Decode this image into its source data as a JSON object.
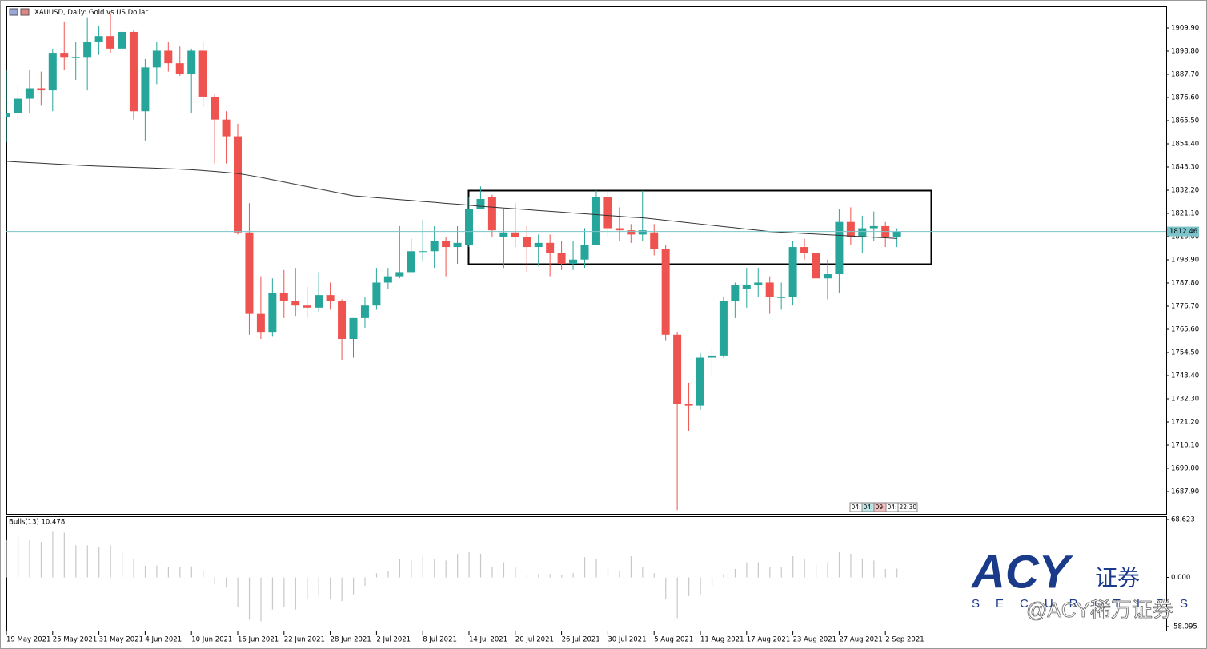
{
  "chart_data": [
    {
      "type": "candlestick",
      "title": "XAUUSD, Daily:  Gold vs US Dollar",
      "categories": [
        "19 May 2021",
        null,
        null,
        null,
        "25 May 2021",
        null,
        null,
        null,
        "31 May 2021",
        null,
        null,
        null,
        "4 Jun 2021",
        null,
        null,
        null,
        "10 Jun 2021",
        null,
        null,
        null,
        "16 Jun 2021",
        null,
        null,
        null,
        "22 Jun 2021",
        null,
        null,
        null,
        "28 Jun 2021",
        null,
        null,
        null,
        "2 Jul 2021",
        null,
        null,
        null,
        "8 Jul 2021",
        null,
        null,
        null,
        "14 Jul 2021",
        null,
        null,
        null,
        "20 Jul 2021",
        null,
        null,
        null,
        "26 Jul 2021",
        null,
        null,
        null,
        "30 Jul 2021",
        null,
        null,
        null,
        "5 Aug 2021",
        null,
        null,
        null,
        "11 Aug 2021",
        null,
        null,
        null,
        "17 Aug 2021",
        null,
        null,
        null,
        "23 Aug 2021",
        null,
        null,
        null,
        "27 Aug 2021",
        null,
        null,
        null,
        "2 Sep 2021",
        null
      ],
      "open": [
        1867,
        1869,
        1876,
        1881,
        1880,
        1898,
        1896,
        1896,
        1903,
        1906,
        1900,
        1908,
        1870,
        1891,
        1899,
        1893,
        1888,
        1899,
        1877,
        1866,
        1858,
        1812,
        1773,
        1764,
        1783,
        1779,
        1777,
        1776,
        1782,
        1779,
        1761,
        1771,
        1777,
        1788,
        1791,
        1793,
        1803,
        1803,
        1808,
        1805,
        1806,
        1823,
        1829,
        1810,
        1812,
        1810,
        1805,
        1807,
        1802,
        1797,
        1799,
        1806,
        1829,
        1814,
        1813,
        1811,
        1812,
        1804,
        1763,
        1730,
        1729,
        1752,
        1753,
        1779,
        1785,
        1787,
        1788,
        1781,
        1781,
        1805,
        1802,
        1790,
        1792,
        1817,
        1810,
        1814,
        1815,
        1810
      ],
      "high": [
        1890,
        1883,
        1890,
        1889,
        1900,
        1913,
        1903,
        1915,
        1911,
        1917,
        1910,
        1909,
        1895,
        1903,
        1903,
        1901,
        1900,
        1903,
        1878,
        1870,
        1864,
        1826,
        1791,
        1790,
        1794,
        1795,
        1786,
        1793,
        1788,
        1780,
        1771,
        1781,
        1795,
        1795,
        1815,
        1809,
        1818,
        1815,
        1810,
        1815,
        1829,
        1834,
        1830,
        1823,
        1826,
        1815,
        1811,
        1811,
        1808,
        1808,
        1814,
        1832,
        1832,
        1824,
        1816,
        1832,
        1816,
        1806,
        1764,
        1740,
        1754,
        1757,
        1781,
        1788,
        1795,
        1795,
        1791,
        1788,
        1808,
        1809,
        1803,
        1799,
        1823,
        1824,
        1820,
        1822,
        1817,
        1814
      ],
      "low": [
        1855,
        1865,
        1869,
        1873,
        1870,
        1890,
        1885,
        1880,
        1897,
        1898,
        1896,
        1866,
        1856,
        1883,
        1889,
        1887,
        1869,
        1872,
        1845,
        1845,
        1811,
        1763,
        1761,
        1762,
        1771,
        1772,
        1771,
        1774,
        1775,
        1751,
        1752,
        1766,
        1775,
        1785,
        1790,
        1793,
        1798,
        1795,
        1791,
        1797,
        1805,
        1823,
        1810,
        1795,
        1805,
        1793,
        1796,
        1791,
        1794,
        1794,
        1795,
        1806,
        1810,
        1808,
        1807,
        1808,
        1801,
        1760,
        1679,
        1717,
        1727,
        1743,
        1752,
        1771,
        1776,
        1781,
        1773,
        1775,
        1777,
        1799,
        1781,
        1780,
        1783,
        1806,
        1802,
        1808,
        1805,
        1805
      ],
      "close": [
        1869,
        1876,
        1881,
        1880,
        1898,
        1896,
        1896,
        1903,
        1906,
        1900,
        1908,
        1870,
        1891,
        1899,
        1893,
        1888,
        1899,
        1877,
        1866,
        1858,
        1812,
        1773,
        1764,
        1783,
        1779,
        1777,
        1776,
        1782,
        1779,
        1761,
        1771,
        1777,
        1788,
        1791,
        1793,
        1803,
        1803,
        1808,
        1805,
        1807,
        1823,
        1828,
        1813,
        1812,
        1810,
        1805,
        1807,
        1802,
        1797,
        1799,
        1806,
        1829,
        1814,
        1813,
        1811,
        1813,
        1804,
        1763,
        1730,
        1729,
        1752,
        1753,
        1779,
        1787,
        1787,
        1788,
        1781,
        1781,
        1805,
        1802,
        1790,
        1792,
        1817,
        1810,
        1814,
        1815,
        1810,
        1812.46
      ],
      "moving_average": {
        "color": "#333333",
        "values": [
          1846,
          1845.7,
          1845.4,
          1845.1,
          1844.8,
          1844.5,
          1844.2,
          1843.9,
          1843.7,
          1843.5,
          1843.3,
          1843.1,
          1842.9,
          1842.7,
          1842.5,
          1842.3,
          1842.0,
          1841.6,
          1841.2,
          1840.7,
          1840.2,
          1839.3,
          1838.3,
          1837.2,
          1836.1,
          1835.0,
          1833.9,
          1832.8,
          1831.7,
          1830.6,
          1829.5,
          1829.1,
          1828.6,
          1828.2,
          1827.7,
          1827.3,
          1826.8,
          1826.4,
          1825.9,
          1825.5,
          1825.0,
          1824.5,
          1824.1,
          1823.7,
          1823.3,
          1822.9,
          1822.5,
          1822.1,
          1821.7,
          1821.3,
          1820.9,
          1820.5,
          1820.1,
          1819.7,
          1819.3,
          1819.0,
          1818.4,
          1817.8,
          1817.2,
          1816.6,
          1816.0,
          1815.4,
          1814.8,
          1814.2,
          1813.6,
          1813.0,
          1812.4,
          1812.1,
          1811.8,
          1811.5,
          1811.2,
          1810.9,
          1810.6,
          1810.3,
          1810.0,
          1809.7,
          1809.4,
          1809.1
        ]
      },
      "up_color": "#26a69a",
      "down_color": "#ef5350",
      "last_price": 1812.46,
      "last_price_color": "#7cc4c9",
      "ylim": [
        1677.18,
        1920.23
      ],
      "yticks": [
        {
          "value": 1909.9,
          "label": "1909.90"
        },
        {
          "value": 1898.8,
          "label": "1898.80"
        },
        {
          "value": 1887.7,
          "label": "1887.70"
        },
        {
          "value": 1876.6,
          "label": "1876.60"
        },
        {
          "value": 1865.5,
          "label": "1865.50"
        },
        {
          "value": 1854.4,
          "label": "1854.40"
        },
        {
          "value": 1843.3,
          "label": "1843.30"
        },
        {
          "value": 1832.2,
          "label": "1832.20"
        },
        {
          "value": 1821.1,
          "label": "1821.10"
        },
        {
          "value": 1810,
          "label": "1810.00"
        },
        {
          "value": 1798.9,
          "label": "1798.90"
        },
        {
          "value": 1787.8,
          "label": "1787.80"
        },
        {
          "value": 1776.7,
          "label": "1776.70"
        },
        {
          "value": 1765.6,
          "label": "1765.60"
        },
        {
          "value": 1754.5,
          "label": "1754.50"
        },
        {
          "value": 1743.4,
          "label": "1743.40"
        },
        {
          "value": 1732.3,
          "label": "1732.30"
        },
        {
          "value": 1721.2,
          "label": "1721.20"
        },
        {
          "value": 1710.1,
          "label": "1710.10"
        },
        {
          "value": 1699,
          "label": "1699.00"
        },
        {
          "value": 1687.9,
          "label": "1687.90"
        }
      ],
      "countdown": [
        "04:",
        "04:",
        "09:",
        "04:",
        "22:30"
      ]
    },
    {
      "type": "bar",
      "title": "Bulls(13) 10.478",
      "color": "#c8c8c8",
      "values": [
        45,
        48,
        45,
        42,
        55,
        53,
        38,
        38,
        36,
        38,
        30,
        22,
        14,
        14,
        12,
        12,
        13,
        8,
        -8,
        -12,
        -35,
        -50,
        -52,
        -38,
        -35,
        -38,
        -25,
        -22,
        -26,
        -28,
        -20,
        -10,
        5,
        8,
        22,
        20,
        25,
        22,
        20,
        28,
        30,
        28,
        12,
        18,
        12,
        3,
        4,
        4,
        3,
        5,
        24,
        22,
        13,
        8,
        25,
        12,
        5,
        -25,
        -48,
        -22,
        -20,
        -10,
        4,
        10,
        18,
        18,
        12,
        12,
        25,
        22,
        15,
        18,
        30,
        28,
        22,
        20,
        10,
        10.478
      ],
      "ylim": [
        -63.8,
        72.4
      ],
      "yticks": [
        68.623,
        {
          "value": 0,
          "label": "0.000"
        },
        -58.095
      ]
    }
  ],
  "watermark": {
    "logo": "ACY",
    "logo_cn": "证券",
    "subtitle": "SECURITIES",
    "handle": "@ACY稀万证券"
  }
}
